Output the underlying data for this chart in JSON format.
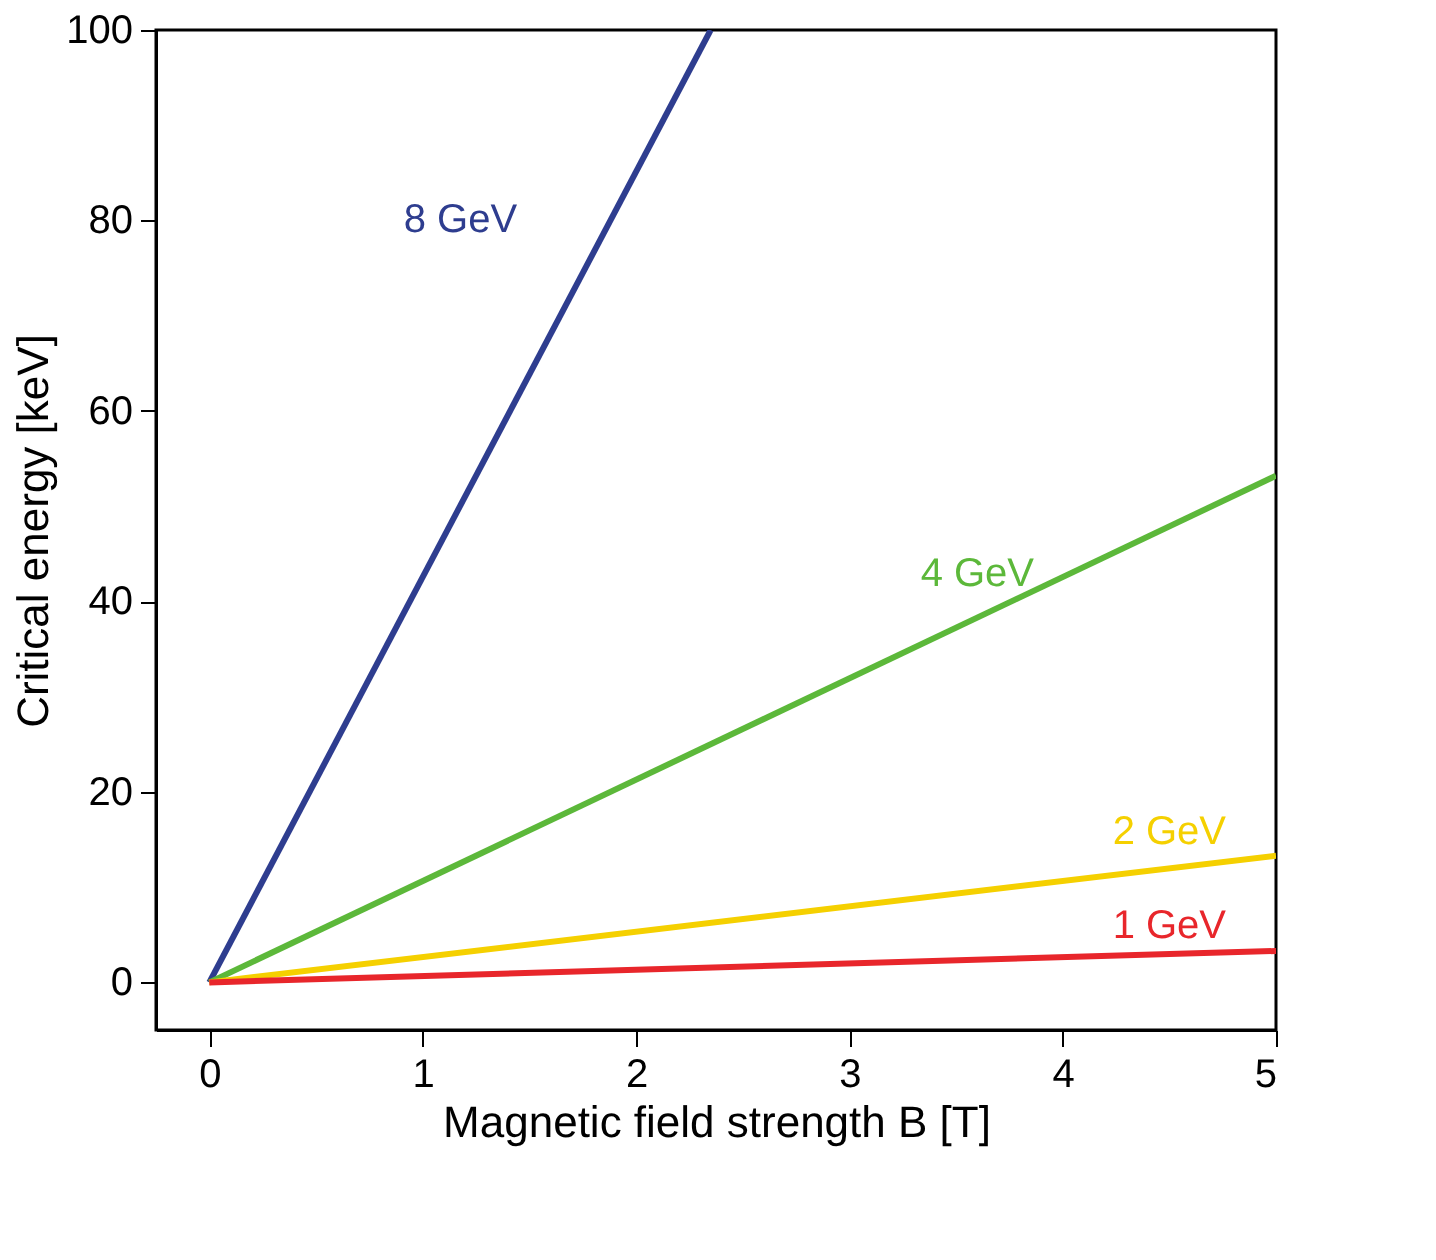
{
  "chart_data": {
    "type": "line",
    "xlabel": "Magnetic field strength B [T]",
    "ylabel": "Critical energy [keV]",
    "xlim": [
      -0.25,
      5
    ],
    "xticks": [
      0,
      1,
      2,
      3,
      4,
      5
    ],
    "ylim": [
      -5,
      100
    ],
    "yticks": [
      0,
      20,
      40,
      60,
      80,
      100
    ],
    "grid": false,
    "marker": "none",
    "line_style": "solid",
    "series": [
      {
        "name": "8 GeV",
        "color": "#2e3d8f",
        "x": [
          0,
          2.35
        ],
        "values": [
          0,
          100
        ]
      },
      {
        "name": "4 GeV",
        "color": "#5cb83a",
        "x": [
          0,
          5
        ],
        "values": [
          0,
          53.2
        ]
      },
      {
        "name": "2 GeV",
        "color": "#f5d000",
        "x": [
          0,
          5
        ],
        "values": [
          0,
          13.3
        ]
      },
      {
        "name": "1 GeV",
        "color": "#e8262b",
        "x": [
          0,
          5
        ],
        "values": [
          0,
          3.3
        ]
      }
    ]
  }
}
